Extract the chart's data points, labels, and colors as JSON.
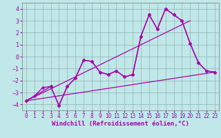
{
  "xlabel": "Windchill (Refroidissement éolien,°C)",
  "bg_color": "#c0e8e8",
  "line_color": "#aa00aa",
  "grid_color": "#99bbbb",
  "xlim": [
    -0.5,
    23.5
  ],
  "ylim": [
    -4.5,
    4.5
  ],
  "yticks": [
    -4,
    -3,
    -2,
    -1,
    0,
    1,
    2,
    3,
    4
  ],
  "xticks": [
    0,
    1,
    2,
    3,
    4,
    5,
    6,
    7,
    8,
    9,
    10,
    11,
    12,
    13,
    14,
    15,
    16,
    17,
    18,
    19,
    20,
    21,
    22,
    23
  ],
  "series": [
    {
      "x": [
        0,
        1,
        2,
        3,
        4,
        5,
        6,
        7,
        8,
        9,
        10,
        11,
        12,
        13,
        14,
        15,
        16,
        17,
        18,
        19,
        20,
        21,
        22,
        23
      ],
      "y": [
        -3.7,
        -3.3,
        -2.6,
        -2.5,
        -4.1,
        -2.5,
        -1.8,
        -0.3,
        -0.4,
        -1.3,
        -1.5,
        -1.2,
        -1.7,
        -1.5,
        1.7,
        3.5,
        2.3,
        4.0,
        3.5,
        3.0,
        1.1,
        -0.5,
        -1.2,
        -1.3
      ],
      "marker": "D",
      "markersize": 2.5,
      "linewidth": 1.0
    },
    {
      "x": [
        0,
        3,
        4,
        5,
        6,
        7,
        8,
        9,
        10,
        11,
        12,
        13,
        14,
        15,
        16,
        17,
        18,
        19,
        20,
        21,
        22,
        23
      ],
      "y": [
        -3.7,
        -2.5,
        -4.1,
        -2.5,
        -1.8,
        -0.3,
        -0.4,
        -1.3,
        -1.5,
        -1.2,
        -1.7,
        -1.5,
        1.7,
        3.5,
        2.3,
        4.0,
        3.5,
        3.0,
        1.1,
        -0.5,
        -1.2,
        -1.3
      ],
      "marker": "D",
      "markersize": 2.5,
      "linewidth": 1.0
    },
    {
      "x": [
        0,
        23
      ],
      "y": [
        -3.7,
        -1.3
      ],
      "marker": null,
      "markersize": 0,
      "linewidth": 0.9
    },
    {
      "x": [
        0,
        20
      ],
      "y": [
        -3.7,
        3.0
      ],
      "marker": null,
      "markersize": 0,
      "linewidth": 0.9
    }
  ],
  "tick_fontsize": 5.5,
  "xlabel_fontsize": 6.5
}
